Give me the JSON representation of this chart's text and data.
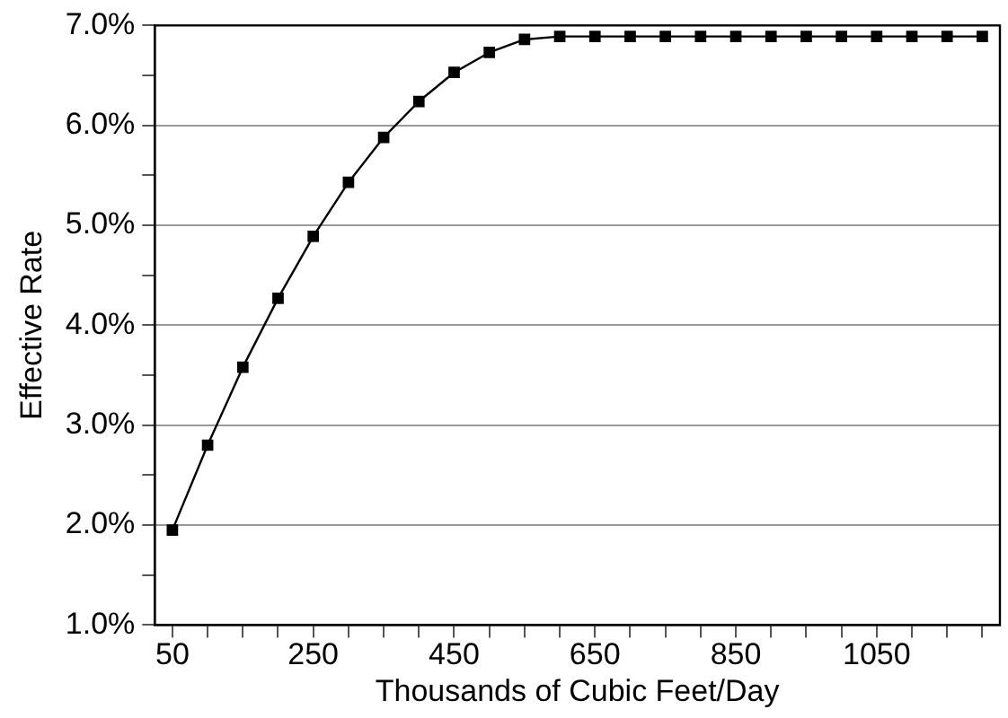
{
  "chart_data": {
    "type": "line",
    "xlabel": "Thousands of Cubic Feet/Day",
    "ylabel": "Effective Rate",
    "x": [
      50,
      100,
      150,
      200,
      250,
      300,
      350,
      400,
      450,
      500,
      550,
      600,
      650,
      700,
      750,
      800,
      850,
      900,
      950,
      1000,
      1050,
      1100,
      1150,
      1200
    ],
    "series": [
      {
        "color": "#000000",
        "values": [
          1.95,
          2.8,
          3.58,
          4.27,
          4.89,
          5.43,
          5.88,
          6.24,
          6.53,
          6.73,
          6.86,
          6.89,
          6.89,
          6.89,
          6.89,
          6.89,
          6.89,
          6.89,
          6.89,
          6.89,
          6.89,
          6.89,
          6.89,
          6.89
        ]
      }
    ],
    "xlim": [
      25,
      1225
    ],
    "xticks": [
      50,
      {
        "value": 100,
        "label": null
      },
      {
        "value": 150,
        "label": null
      },
      {
        "value": 200,
        "label": null
      },
      250,
      {
        "value": 300,
        "label": null
      },
      {
        "value": 350,
        "label": null
      },
      {
        "value": 400,
        "label": null
      },
      450,
      {
        "value": 500,
        "label": null
      },
      {
        "value": 550,
        "label": null
      },
      {
        "value": 600,
        "label": null
      },
      650,
      {
        "value": 700,
        "label": null
      },
      {
        "value": 750,
        "label": null
      },
      {
        "value": 800,
        "label": null
      },
      850,
      {
        "value": 900,
        "label": null
      },
      {
        "value": 950,
        "label": null
      },
      {
        "value": 1000,
        "label": null
      },
      1050,
      {
        "value": 1100,
        "label": null
      },
      {
        "value": 1150,
        "label": null
      },
      {
        "value": 1200,
        "label": null
      }
    ],
    "ylim": [
      1,
      7
    ],
    "yticks": [
      {
        "value": 1,
        "label": "1.0%"
      },
      {
        "value": 1.5,
        "label": null
      },
      {
        "value": 2,
        "label": "2.0%"
      },
      {
        "value": 2.5,
        "label": null
      },
      {
        "value": 3,
        "label": "3.0%"
      },
      {
        "value": 3.5,
        "label": null
      },
      {
        "value": 4,
        "label": "4.0%"
      },
      {
        "value": 4.5,
        "label": null
      },
      {
        "value": 5,
        "label": "5.0%"
      },
      {
        "value": 5.5,
        "label": null
      },
      {
        "value": 6,
        "label": "6.0%"
      },
      {
        "value": 6.5,
        "label": null
      },
      {
        "value": 7,
        "label": "7.0%"
      }
    ],
    "grid": "y",
    "legend": false,
    "marker": "square",
    "line_style": "solid"
  }
}
